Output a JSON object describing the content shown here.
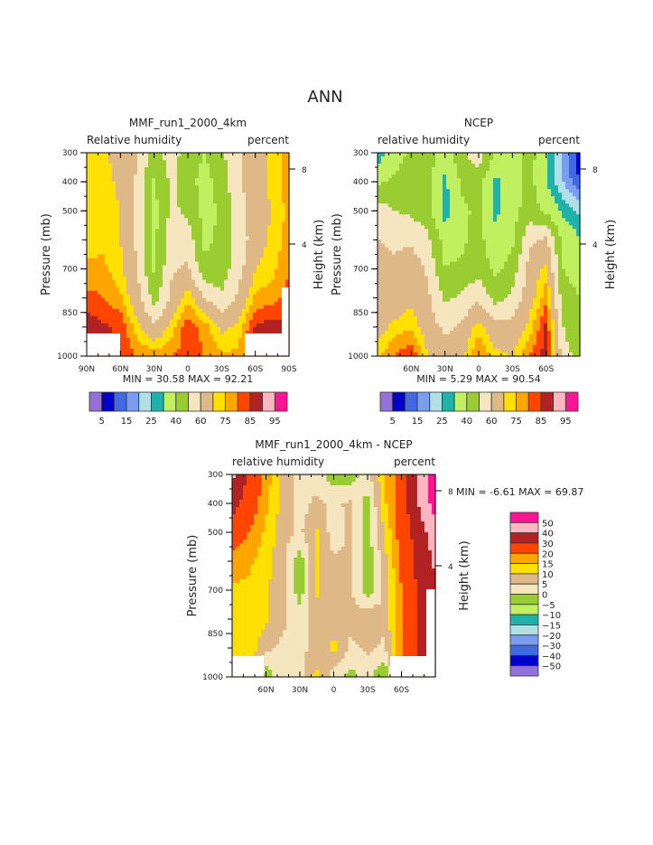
{
  "title": "ANN",
  "palette": [
    "#9370DB",
    "#0000CD",
    "#4169E1",
    "#7B9DF0",
    "#B0E0E6",
    "#20B2AA",
    "#C0F060",
    "#9ACD32",
    "#F5E6C0",
    "#DEB887",
    "#FFE000",
    "#FFA500",
    "#FF4500",
    "#B22222",
    "#FFB6C1",
    "#FF1493"
  ],
  "chart_data": [
    {
      "type": "heatmap",
      "title": "MMF_run1_2000_4km",
      "left_label": "Relative humidity",
      "right_label": "percent",
      "ylabel": "Pressure (mb)",
      "y2label": "Height (km)",
      "min_text": "MIN =   30.58   MAX =   92.21",
      "lat": [
        90,
        75,
        60,
        45,
        30,
        15,
        0,
        -15,
        -30,
        -45,
        -60,
        -75,
        -90
      ],
      "pressure": [
        300,
        400,
        500,
        600,
        700,
        800,
        900,
        1000
      ],
      "ylim": [
        300,
        1000
      ],
      "xlim": [
        90,
        -90
      ],
      "yticks": [
        "300",
        "400",
        "500",
        "700",
        "850",
        "1000"
      ],
      "y2ticks": [
        "8",
        "4"
      ],
      "xticks": [
        "90N",
        "60N",
        "30N",
        "0",
        "30S",
        "60S",
        "90S"
      ],
      "levels": [
        5,
        10,
        15,
        20,
        25,
        30,
        40,
        50,
        60,
        70,
        75,
        80,
        85,
        90,
        95
      ],
      "colorbar_labels": [
        "5",
        "15",
        "25",
        "40",
        "60",
        "75",
        "85",
        "95"
      ],
      "values": [
        [
          72,
          72,
          65,
          62,
          45,
          55,
          45,
          40,
          48,
          58,
          65,
          72,
          78
        ],
        [
          72,
          73,
          68,
          58,
          38,
          52,
          44,
          36,
          45,
          58,
          66,
          72,
          78
        ],
        [
          73,
          74,
          70,
          58,
          37,
          52,
          48,
          36,
          42,
          56,
          66,
          70,
          77
        ],
        [
          73,
          74,
          70,
          58,
          37,
          55,
          56,
          38,
          42,
          54,
          65,
          72,
          77
        ],
        [
          76,
          76,
          72,
          60,
          38,
          58,
          62,
          42,
          44,
          56,
          70,
          73,
          80
        ],
        [
          82,
          80,
          76,
          64,
          46,
          62,
          74,
          60,
          52,
          62,
          76,
          78,
          82
        ],
        [
          88,
          86,
          84,
          72,
          62,
          72,
          84,
          78,
          68,
          72,
          86,
          88,
          85
        ],
        [
          88,
          86,
          84,
          80,
          78,
          80,
          82,
          80,
          76,
          76,
          88,
          86,
          85
        ]
      ]
    },
    {
      "type": "heatmap",
      "title": "NCEP",
      "left_label": "relative humidity",
      "right_label": "percent",
      "ylabel": "Pressure (mb)",
      "y2label": "Height (km)",
      "min_text": "MIN =    5.29   MAX =   90.54",
      "lat": [
        90,
        75,
        60,
        45,
        30,
        15,
        0,
        -15,
        -30,
        -45,
        -60,
        -75,
        -90
      ],
      "pressure": [
        300,
        400,
        500,
        600,
        700,
        800,
        900,
        1000
      ],
      "ylim": [
        300,
        1000
      ],
      "xlim": [
        90,
        -90
      ],
      "yticks": [
        "300",
        "400",
        "500",
        "700",
        "850",
        "1000"
      ],
      "y2ticks": [
        "8",
        "4"
      ],
      "xticks": [
        "60N",
        "30N",
        "0",
        "30S",
        "60S"
      ],
      "levels": [
        5,
        10,
        15,
        20,
        25,
        30,
        40,
        50,
        60,
        70,
        75,
        80,
        85,
        90,
        95
      ],
      "colorbar_labels": [
        "5",
        "15",
        "25",
        "40",
        "60",
        "75",
        "85",
        "95"
      ],
      "values": [
        [
          25,
          35,
          42,
          45,
          34,
          48,
          56,
          38,
          36,
          44,
          32,
          20,
          5
        ],
        [
          38,
          42,
          45,
          44,
          28,
          42,
          44,
          28,
          34,
          44,
          30,
          20,
          10
        ],
        [
          55,
          50,
          48,
          44,
          26,
          38,
          42,
          28,
          36,
          45,
          38,
          28,
          24
        ],
        [
          60,
          58,
          58,
          52,
          36,
          38,
          44,
          32,
          38,
          58,
          62,
          38,
          30
        ],
        [
          64,
          62,
          66,
          58,
          40,
          42,
          46,
          38,
          44,
          64,
          72,
          40,
          35
        ],
        [
          65,
          64,
          68,
          62,
          48,
          52,
          58,
          46,
          52,
          66,
          78,
          45,
          40
        ],
        [
          66,
          72,
          74,
          65,
          58,
          62,
          74,
          64,
          64,
          72,
          86,
          50,
          42
        ],
        [
          74,
          80,
          85,
          70,
          65,
          68,
          80,
          72,
          70,
          80,
          88,
          55,
          45
        ]
      ]
    },
    {
      "type": "heatmap",
      "title": "MMF_run1_2000_4km - NCEP",
      "left_label": "relative humidity",
      "right_label": "percent",
      "ylabel": "Pressure (mb)",
      "y2label": "Height (km)",
      "min_text": "MIN =   -6.61   MAX =   69.87",
      "lat": [
        90,
        75,
        60,
        45,
        30,
        15,
        0,
        -15,
        -30,
        -45,
        -60,
        -75,
        -90
      ],
      "pressure": [
        300,
        400,
        500,
        600,
        700,
        800,
        900,
        1000
      ],
      "ylim": [
        300,
        1000
      ],
      "xlim": [
        90,
        -90
      ],
      "yticks": [
        "300",
        "400",
        "500",
        "700",
        "850",
        "1000"
      ],
      "y2ticks": [
        "8",
        "4"
      ],
      "xticks": [
        "60N",
        "30N",
        "0",
        "30S",
        "60S"
      ],
      "levels": [
        -50,
        -40,
        -30,
        -20,
        -15,
        -10,
        -5,
        0,
        5,
        10,
        15,
        20,
        30,
        40,
        50
      ],
      "colorbar_labels": [
        "50",
        "40",
        "30",
        "20",
        "15",
        "10",
        "5",
        "0",
        "−5",
        "−10",
        "−15",
        "−20",
        "−30",
        "−40",
        "−50"
      ],
      "values": [
        [
          42,
          28,
          18,
          8,
          3,
          3,
          -3,
          -3,
          3,
          14,
          25,
          40,
          55
        ],
        [
          34,
          25,
          16,
          8,
          3,
          6,
          4,
          6,
          -2,
          14,
          25,
          40,
          55
        ],
        [
          25,
          20,
          14,
          7,
          4,
          11,
          2,
          6,
          -3,
          10,
          24,
          35,
          45
        ],
        [
          18,
          16,
          12,
          6,
          -3,
          11,
          6,
          6,
          -3,
          8,
          22,
          32,
          42
        ],
        [
          14,
          14,
          11,
          6,
          -3,
          11,
          6,
          6,
          -3,
          6,
          20,
          32,
          38
        ],
        [
          13,
          13,
          11,
          6,
          3,
          8,
          6,
          6,
          10,
          6,
          20,
          32,
          35
        ],
        [
          14,
          14,
          6,
          4,
          4,
          6,
          12,
          4,
          6,
          4,
          20,
          30,
          35
        ],
        [
          12,
          8,
          -3,
          3,
          3,
          12,
          2,
          -2,
          3,
          -6,
          20,
          30,
          35
        ]
      ]
    }
  ]
}
